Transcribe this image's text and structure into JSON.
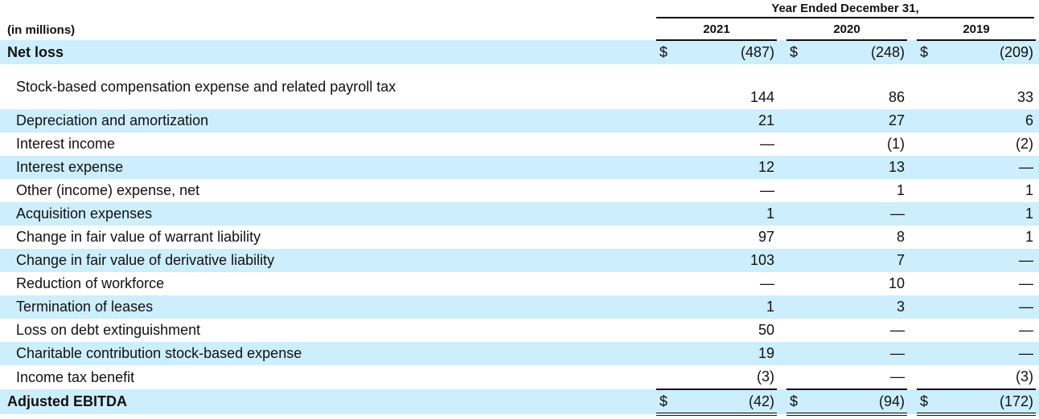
{
  "header": {
    "period": "Year Ended December 31,",
    "units": "(in millions)",
    "years": [
      "2021",
      "2020",
      "2019"
    ]
  },
  "rows": [
    {
      "label": "Net loss",
      "bold": true,
      "dollar": true,
      "values": [
        "(487)",
        "(248)",
        "(209)"
      ]
    },
    {
      "label": "Stock-based compensation expense and related payroll tax",
      "values": [
        "144",
        "86",
        "33"
      ]
    },
    {
      "label": "Depreciation and amortization",
      "values": [
        "21",
        "27",
        "6"
      ]
    },
    {
      "label": "Interest income",
      "values": [
        "—",
        "(1)",
        "(2)"
      ]
    },
    {
      "label": "Interest expense",
      "values": [
        "12",
        "13",
        "—"
      ]
    },
    {
      "label": "Other (income) expense, net",
      "values": [
        "—",
        "1",
        "1"
      ]
    },
    {
      "label": "Acquisition expenses",
      "values": [
        "1",
        "—",
        "1"
      ]
    },
    {
      "label": "Change in fair value of warrant liability",
      "values": [
        "97",
        "8",
        "1"
      ]
    },
    {
      "label": "Change in fair value of derivative liability",
      "values": [
        "103",
        "7",
        "—"
      ]
    },
    {
      "label": "Reduction of workforce",
      "values": [
        "—",
        "10",
        "—"
      ]
    },
    {
      "label": "Termination of leases",
      "values": [
        "1",
        "3",
        "—"
      ]
    },
    {
      "label": "Loss on debt extinguishment",
      "values": [
        "50",
        "—",
        "—"
      ]
    },
    {
      "label": "Charitable contribution stock-based expense",
      "values": [
        "19",
        "—",
        "—"
      ]
    },
    {
      "label": "Income tax benefit",
      "values": [
        "(3)",
        "—",
        "(3)"
      ]
    },
    {
      "label": "Adjusted EBITDA",
      "bold": true,
      "dollar": true,
      "total": true,
      "values": [
        "(42)",
        "(94)",
        "(172)"
      ]
    }
  ],
  "currency_symbol": "$",
  "colors": {
    "band": "#cdeefc"
  }
}
